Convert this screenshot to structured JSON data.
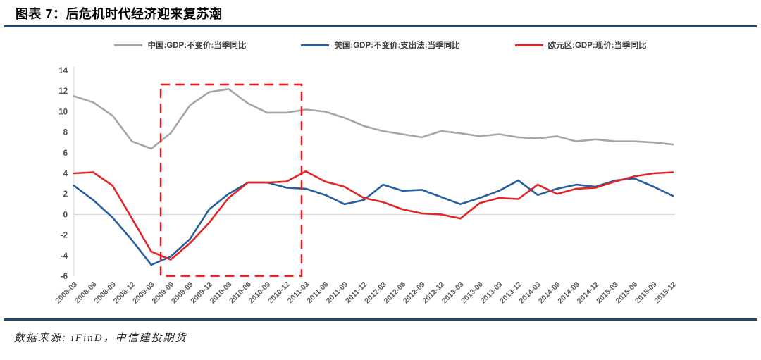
{
  "header": {
    "title": "图表 7：后危机时代经济迎来复苏潮"
  },
  "footer": {
    "source": "数据来源: iFinD，中信建投期货"
  },
  "colors": {
    "rule": "#1F4770",
    "axis": "#D9D9D9",
    "tick_text": "#595959",
    "highlight": "#FF1111"
  },
  "chart_data": {
    "type": "line",
    "title": "图表 7：后危机时代经济迎来复苏潮",
    "xlabel": "",
    "ylabel": "",
    "ylim": [
      -6,
      14
    ],
    "yticks": [
      14,
      12,
      10,
      8,
      6,
      4,
      2,
      0,
      -2,
      -4,
      -6
    ],
    "grid": "zero-line-only",
    "legend_position": "top",
    "categories": [
      "2008-03",
      "2008-06",
      "2008-09",
      "2008-12",
      "2009-03",
      "2009-06",
      "2009-09",
      "2009-12",
      "2010-03",
      "2010-06",
      "2010-09",
      "2010-12",
      "2011-03",
      "2011-06",
      "2011-09",
      "2011-12",
      "2012-03",
      "2012-06",
      "2012-09",
      "2012-12",
      "2013-03",
      "2013-06",
      "2013-09",
      "2013-12",
      "2014-03",
      "2014-06",
      "2014-09",
      "2014-12",
      "2015-03",
      "2015-06",
      "2015-09",
      "2015-12"
    ],
    "series": [
      {
        "id": "china",
        "name": "中国:GDP:不变价:当季同比",
        "color": "#A6A6A6",
        "values": [
          11.5,
          10.9,
          9.6,
          7.1,
          6.4,
          7.9,
          10.6,
          11.9,
          12.2,
          10.8,
          9.9,
          9.9,
          10.2,
          10.0,
          9.4,
          8.6,
          8.1,
          7.8,
          7.5,
          8.1,
          7.9,
          7.6,
          7.8,
          7.5,
          7.4,
          7.6,
          7.1,
          7.3,
          7.1,
          7.1,
          7.0,
          6.8
        ]
      },
      {
        "id": "us",
        "name": "美国:GDP:不变价:支出法:当季同比",
        "color": "#265F9E",
        "values": [
          2.8,
          1.4,
          -0.3,
          -2.5,
          -4.9,
          -4.1,
          -2.4,
          0.5,
          2.0,
          3.1,
          3.1,
          2.6,
          2.5,
          1.9,
          1.0,
          1.4,
          2.9,
          2.3,
          2.4,
          1.7,
          1.0,
          1.6,
          2.3,
          3.3,
          1.9,
          2.5,
          2.9,
          2.7,
          3.3,
          3.5,
          2.7,
          1.8
        ]
      },
      {
        "id": "eurozone",
        "name": "欧元区:GDP:现价:当季同比",
        "color": "#E02626",
        "values": [
          4.0,
          4.1,
          2.8,
          -0.4,
          -3.6,
          -4.4,
          -2.8,
          -0.8,
          1.6,
          3.1,
          3.1,
          3.2,
          4.2,
          3.2,
          2.7,
          1.6,
          1.2,
          0.5,
          0.1,
          0.0,
          -0.4,
          1.1,
          1.6,
          1.5,
          2.9,
          2.0,
          2.5,
          2.6,
          3.2,
          3.7,
          4.0,
          4.1
        ]
      }
    ],
    "highlight_box": {
      "style": "dashed-red",
      "x0": 4.49,
      "x1": 11.78,
      "y0": -5.98,
      "y1": 12.63
    }
  }
}
